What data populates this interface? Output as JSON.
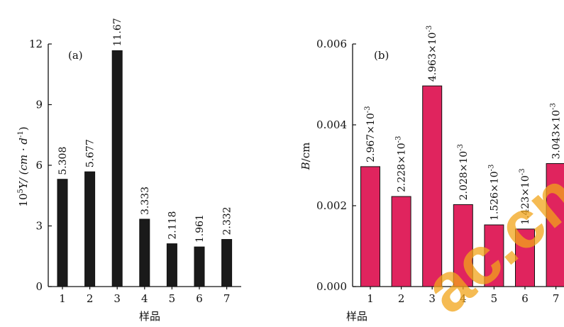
{
  "chart_data": [
    {
      "type": "bar",
      "panel_label": "(a)",
      "categories": [
        "1",
        "2",
        "3",
        "4",
        "5",
        "6",
        "7"
      ],
      "values": [
        5.308,
        5.677,
        11.67,
        3.333,
        2.118,
        1.961,
        2.332
      ],
      "value_labels": [
        "5.308",
        "5.677",
        "11.67",
        "3.333",
        "2.118",
        "1.961",
        "2.332"
      ],
      "xlabel": "样品",
      "ylabel": {
        "base": "10",
        "sup": "5",
        "rest": "Y/ (cm · d",
        "sup2": "-1",
        "close": ")"
      },
      "ylim": [
        0,
        12
      ],
      "yticks": [
        "0",
        "3",
        "6",
        "9",
        "12"
      ],
      "bar_color": "#1a1a1a",
      "grid": false
    },
    {
      "type": "bar",
      "panel_label": "(b)",
      "categories": [
        "1",
        "2",
        "3",
        "4",
        "5",
        "6",
        "7"
      ],
      "values": [
        0.002967,
        0.002228,
        0.004963,
        0.002028,
        0.001526,
        0.001423,
        0.003043
      ],
      "value_labels": [
        {
          "mantissa": "2.967×10",
          "exp": "-3"
        },
        {
          "mantissa": "2.228×10",
          "exp": "-3"
        },
        {
          "mantissa": "4.963×10",
          "exp": "-3"
        },
        {
          "mantissa": "2.028×10",
          "exp": "-3"
        },
        {
          "mantissa": "1.526×10",
          "exp": "-3"
        },
        {
          "mantissa": "1.423×10",
          "exp": "-3"
        },
        {
          "mantissa": "3.043×10",
          "exp": "-3"
        }
      ],
      "xlabel": "样品",
      "ylabel": {
        "var": "B",
        "rest": "/cm"
      },
      "ylim": [
        0,
        0.006
      ],
      "yticks": [
        "0.000",
        "0.002",
        "0.004",
        "0.006"
      ],
      "bar_color": "#e0245e",
      "grid": false
    }
  ],
  "watermark": {
    "text": "ac.cn",
    "color": "#f2a51a"
  }
}
